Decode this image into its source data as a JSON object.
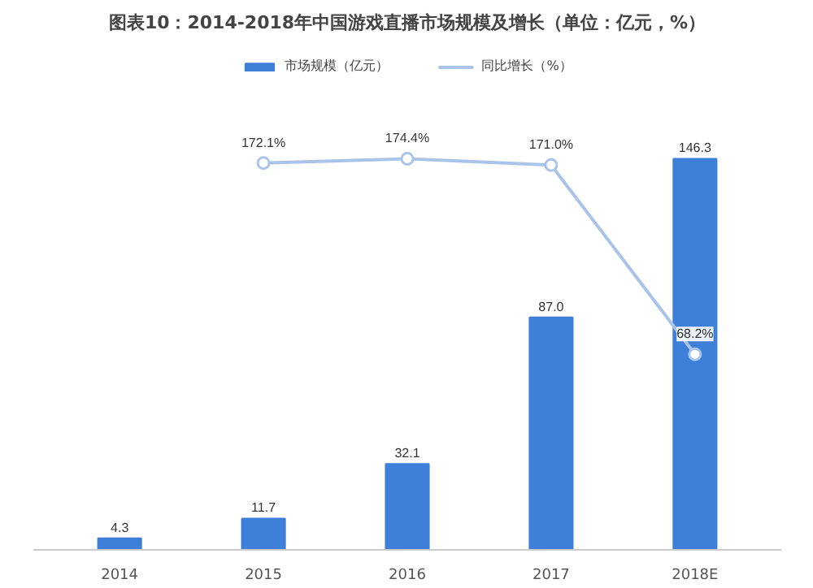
{
  "chart_data": {
    "type": "bar",
    "title": "图表10：2014-2018年中国游戏直播市场规模及增长（单位：亿元，%）",
    "categories": [
      "2014",
      "2015",
      "2016",
      "2017",
      "2018E"
    ],
    "series": [
      {
        "name": "市场规模（亿元）",
        "color": "#3d7fd9",
        "values": [
          4.3,
          11.7,
          32.1,
          87.0,
          146.3
        ],
        "value_labels": [
          "4.3",
          "11.7",
          "32.1",
          "87.0",
          "146.3"
        ]
      },
      {
        "name": "同比增长（%）",
        "type": "line",
        "axis": "y2",
        "color": "#a9c4e8",
        "values": [
          null,
          172.1,
          174.4,
          171.0,
          68.2
        ],
        "value_labels": [
          null,
          "172.1%",
          "174.4%",
          "171.0%",
          "68.2%"
        ]
      }
    ],
    "legend": "top",
    "marker": "circle",
    "grid": false
  }
}
